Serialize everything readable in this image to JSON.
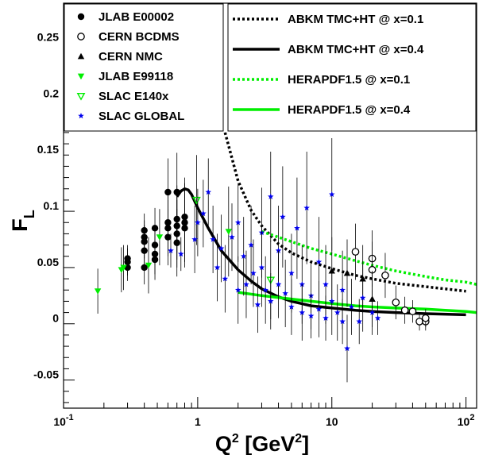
{
  "chart_data": {
    "type": "scatter",
    "x_scale": "log",
    "xlim": [
      0.1,
      120
    ],
    "ylim": [
      -0.08,
      0.28
    ],
    "grid": false,
    "xlabel_main": "Q",
    "xlabel_sup": "2",
    "xlabel_unit_open": " [GeV",
    "xlabel_unit_sup": "2",
    "xlabel_unit_close": "]",
    "ylabel_main": "F",
    "ylabel_sub": "L",
    "x_ticks": [
      {
        "value": 0.1,
        "base": "10",
        "exp": "-1"
      },
      {
        "value": 1,
        "base": "1",
        "exp": ""
      },
      {
        "value": 10,
        "base": "10",
        "exp": ""
      },
      {
        "value": 100,
        "base": "10",
        "exp": "2"
      }
    ],
    "y_ticks": [
      {
        "value": -0.05,
        "label": "-0.05"
      },
      {
        "value": 0,
        "label": "0"
      },
      {
        "value": 0.05,
        "label": "0.05"
      },
      {
        "value": 0.1,
        "label": "0.1"
      },
      {
        "value": 0.15,
        "label": "0.15"
      },
      {
        "value": 0.2,
        "label": "0.2"
      },
      {
        "value": 0.25,
        "label": "0.25"
      }
    ],
    "data_series": [
      {
        "name": "JLAB E00002",
        "marker": "filled-circle",
        "color": "#000000",
        "points": [
          [
            0.3,
            0.045,
            0.012
          ],
          [
            0.3,
            0.05,
            0.012
          ],
          [
            0.3,
            0.053,
            0.012
          ],
          [
            0.4,
            0.045,
            0.015
          ],
          [
            0.4,
            0.06,
            0.015
          ],
          [
            0.4,
            0.068,
            0.015
          ],
          [
            0.4,
            0.072,
            0.015
          ],
          [
            0.4,
            0.078,
            0.015
          ],
          [
            0.48,
            0.052,
            0.018
          ],
          [
            0.48,
            0.057,
            0.018
          ],
          [
            0.48,
            0.065,
            0.018
          ],
          [
            0.48,
            0.08,
            0.018
          ],
          [
            0.6,
            0.072,
            0.025
          ],
          [
            0.6,
            0.08,
            0.025
          ],
          [
            0.6,
            0.085,
            0.025
          ],
          [
            0.6,
            0.112,
            0.03
          ],
          [
            0.7,
            0.067,
            0.03
          ],
          [
            0.7,
            0.075,
            0.03
          ],
          [
            0.7,
            0.082,
            0.03
          ],
          [
            0.7,
            0.088,
            0.03
          ],
          [
            0.7,
            0.112,
            0.035
          ],
          [
            0.8,
            0.08,
            0.035
          ],
          [
            0.8,
            0.085,
            0.035
          ],
          [
            0.8,
            0.09,
            0.035
          ]
        ]
      },
      {
        "name": "CERN BCDMS",
        "marker": "open-circle",
        "color": "#000000",
        "points": [
          [
            15,
            0.059,
            0.025
          ],
          [
            20,
            0.053,
            0.025
          ],
          [
            20,
            0.043,
            0.025
          ],
          [
            25,
            0.038,
            0.02
          ],
          [
            30,
            0.014,
            0.015
          ],
          [
            35,
            0.007,
            0.012
          ],
          [
            40,
            0.006,
            0.01
          ],
          [
            45,
            -0.003,
            0.008
          ],
          [
            50,
            -0.003,
            0.008
          ],
          [
            50,
            0.0,
            0.008
          ]
        ]
      },
      {
        "name": "CERN NMC",
        "marker": "filled-triangle",
        "color": "#000000",
        "points": [
          [
            10,
            0.042,
            0.03
          ],
          [
            13,
            0.04,
            0.03
          ],
          [
            17,
            0.035,
            0.03
          ],
          [
            20,
            0.017,
            0.025
          ]
        ]
      },
      {
        "name": "JLAB E99118",
        "marker": "filled-triangle-down",
        "color": "#00ee00",
        "points": [
          [
            0.18,
            0.024,
            0.02
          ],
          [
            0.27,
            0.043,
            0.02
          ],
          [
            0.28,
            0.045,
            0.02
          ],
          [
            0.43,
            0.047,
            0.025
          ],
          [
            0.52,
            0.072,
            0.025
          ],
          [
            1.7,
            0.077,
            0.04
          ]
        ]
      },
      {
        "name": "SLAC E140x",
        "marker": "open-triangle-down",
        "color": "#00ee00",
        "points": [
          [
            0.98,
            0.105,
            0.04
          ],
          [
            3.5,
            0.034,
            0.035
          ]
        ]
      },
      {
        "name": "SLAC GLOBAL",
        "marker": "star",
        "color": "#0000ee",
        "points": [
          [
            0.63,
            0.06,
            0.015
          ],
          [
            0.75,
            0.057,
            0.015
          ],
          [
            0.95,
            0.07,
            0.03
          ],
          [
            1.0,
            0.085,
            0.03
          ],
          [
            1.1,
            0.093,
            0.03
          ],
          [
            1.2,
            0.112,
            0.03
          ],
          [
            1.3,
            0.07,
            0.03
          ],
          [
            1.4,
            0.045,
            0.03
          ],
          [
            1.5,
            0.062,
            0.03
          ],
          [
            1.6,
            0.035,
            0.03
          ],
          [
            1.8,
            0.072,
            0.03
          ],
          [
            2.0,
            0.025,
            0.03
          ],
          [
            2.0,
            0.085,
            0.035
          ],
          [
            2.2,
            0.055,
            0.035
          ],
          [
            2.3,
            0.03,
            0.03
          ],
          [
            2.5,
            0.065,
            0.035
          ],
          [
            2.6,
            0.04,
            0.03
          ],
          [
            2.8,
            0.012,
            0.025
          ],
          [
            3.0,
            0.076,
            0.04
          ],
          [
            3.0,
            0.045,
            0.035
          ],
          [
            3.2,
            0.025,
            0.03
          ],
          [
            3.5,
            0.108,
            0.04
          ],
          [
            3.5,
            0.015,
            0.025
          ],
          [
            4.0,
            0.06,
            0.04
          ],
          [
            4.0,
            0.03,
            0.03
          ],
          [
            4.3,
            0.09,
            0.045
          ],
          [
            4.5,
            0.022,
            0.03
          ],
          [
            5.0,
            0.04,
            0.035
          ],
          [
            5.0,
            0.01,
            0.025
          ],
          [
            5.5,
            0.08,
            0.045
          ],
          [
            6.0,
            0.03,
            0.035
          ],
          [
            6.0,
            0.005,
            0.025
          ],
          [
            6.5,
            0.098,
            0.05
          ],
          [
            7.0,
            0.02,
            0.03
          ],
          [
            7.0,
            0.002,
            0.02
          ],
          [
            8.0,
            0.05,
            0.04
          ],
          [
            8.0,
            0.008,
            0.025
          ],
          [
            9.0,
            0.03,
            0.035
          ],
          [
            9.0,
            0.0,
            0.02
          ],
          [
            10.0,
            0.11,
            0.05
          ],
          [
            10.0,
            0.015,
            0.03
          ],
          [
            11.0,
            0.005,
            0.025
          ],
          [
            12.0,
            0.025,
            0.035
          ],
          [
            12.0,
            -0.003,
            0.02
          ],
          [
            13.0,
            -0.027,
            0.03
          ],
          [
            14.0,
            0.01,
            0.025
          ],
          [
            16.0,
            -0.003,
            0.02
          ],
          [
            17.0,
            0.018,
            0.03
          ],
          [
            20.0,
            0.005,
            0.02
          ],
          [
            22.0,
            0.0,
            0.015
          ]
        ]
      }
    ],
    "curves": [
      {
        "name": "ABKM TMC+HT @ x=0.1",
        "color": "#000000",
        "dash": "dotted",
        "points": [
          [
            1.6,
            0.165
          ],
          [
            2,
            0.122
          ],
          [
            2.5,
            0.096
          ],
          [
            3,
            0.082
          ],
          [
            4,
            0.066
          ],
          [
            5,
            0.058
          ],
          [
            7,
            0.05
          ],
          [
            10,
            0.044
          ],
          [
            15,
            0.038
          ],
          [
            20,
            0.035
          ],
          [
            30,
            0.031
          ],
          [
            50,
            0.028
          ],
          [
            70,
            0.026
          ],
          [
            100,
            0.024
          ]
        ]
      },
      {
        "name": "ABKM TMC+HT @ x=0.4",
        "color": "#000000",
        "dash": "solid",
        "points": [
          [
            0.7,
            0.108
          ],
          [
            0.75,
            0.113
          ],
          [
            0.8,
            0.115
          ],
          [
            0.85,
            0.114
          ],
          [
            0.9,
            0.11
          ],
          [
            1,
            0.098
          ],
          [
            1.2,
            0.08
          ],
          [
            1.5,
            0.06
          ],
          [
            2,
            0.043
          ],
          [
            2.5,
            0.033
          ],
          [
            3,
            0.026
          ],
          [
            4,
            0.019
          ],
          [
            5,
            0.015
          ],
          [
            7,
            0.011
          ],
          [
            10,
            0.009
          ],
          [
            15,
            0.007
          ],
          [
            20,
            0.006
          ],
          [
            30,
            0.005
          ],
          [
            50,
            0.004
          ],
          [
            100,
            0.003
          ]
        ]
      },
      {
        "name": "HERAPDF1.5 @ x=0.1",
        "color": "#00ee00",
        "dash": "dotted",
        "points": [
          [
            3,
            0.077
          ],
          [
            4,
            0.072
          ],
          [
            5,
            0.068
          ],
          [
            7,
            0.062
          ],
          [
            10,
            0.057
          ],
          [
            15,
            0.051
          ],
          [
            20,
            0.047
          ],
          [
            30,
            0.042
          ],
          [
            50,
            0.037
          ],
          [
            70,
            0.034
          ],
          [
            100,
            0.032
          ],
          [
            120,
            0.03
          ]
        ]
      },
      {
        "name": "HERAPDF1.5 @ x=0.4",
        "color": "#00ee00",
        "dash": "solid",
        "points": [
          [
            2,
            0.023
          ],
          [
            3,
            0.02
          ],
          [
            5,
            0.017
          ],
          [
            7,
            0.015
          ],
          [
            10,
            0.013
          ],
          [
            15,
            0.011
          ],
          [
            20,
            0.01
          ],
          [
            30,
            0.009
          ],
          [
            50,
            0.008
          ],
          [
            70,
            0.007
          ],
          [
            100,
            0.006
          ],
          [
            120,
            0.005
          ]
        ]
      }
    ],
    "legend_markers": [
      {
        "label": "JLAB E00002",
        "marker": "filled-circle",
        "color": "#000000"
      },
      {
        "label": "CERN BCDMS",
        "marker": "open-circle",
        "color": "#000000"
      },
      {
        "label": "CERN NMC",
        "marker": "filled-triangle",
        "color": "#000000"
      },
      {
        "label": "JLAB E99118",
        "marker": "filled-triangle-down",
        "color": "#00ee00"
      },
      {
        "label": "SLAC E140x",
        "marker": "open-triangle-down",
        "color": "#00ee00"
      },
      {
        "label": "SLAC GLOBAL",
        "marker": "star",
        "color": "#0000ee"
      }
    ],
    "legend_lines": [
      {
        "label": "ABKM TMC+HT @ x=0.1",
        "color": "#000000",
        "dash": "dotted"
      },
      {
        "label": "ABKM TMC+HT @ x=0.4",
        "color": "#000000",
        "dash": "solid"
      },
      {
        "label": "HERAPDF1.5 @ x=0.1",
        "color": "#00ee00",
        "dash": "dotted"
      },
      {
        "label": "HERAPDF1.5 @ x=0.4",
        "color": "#00ee00",
        "dash": "solid"
      }
    ]
  }
}
